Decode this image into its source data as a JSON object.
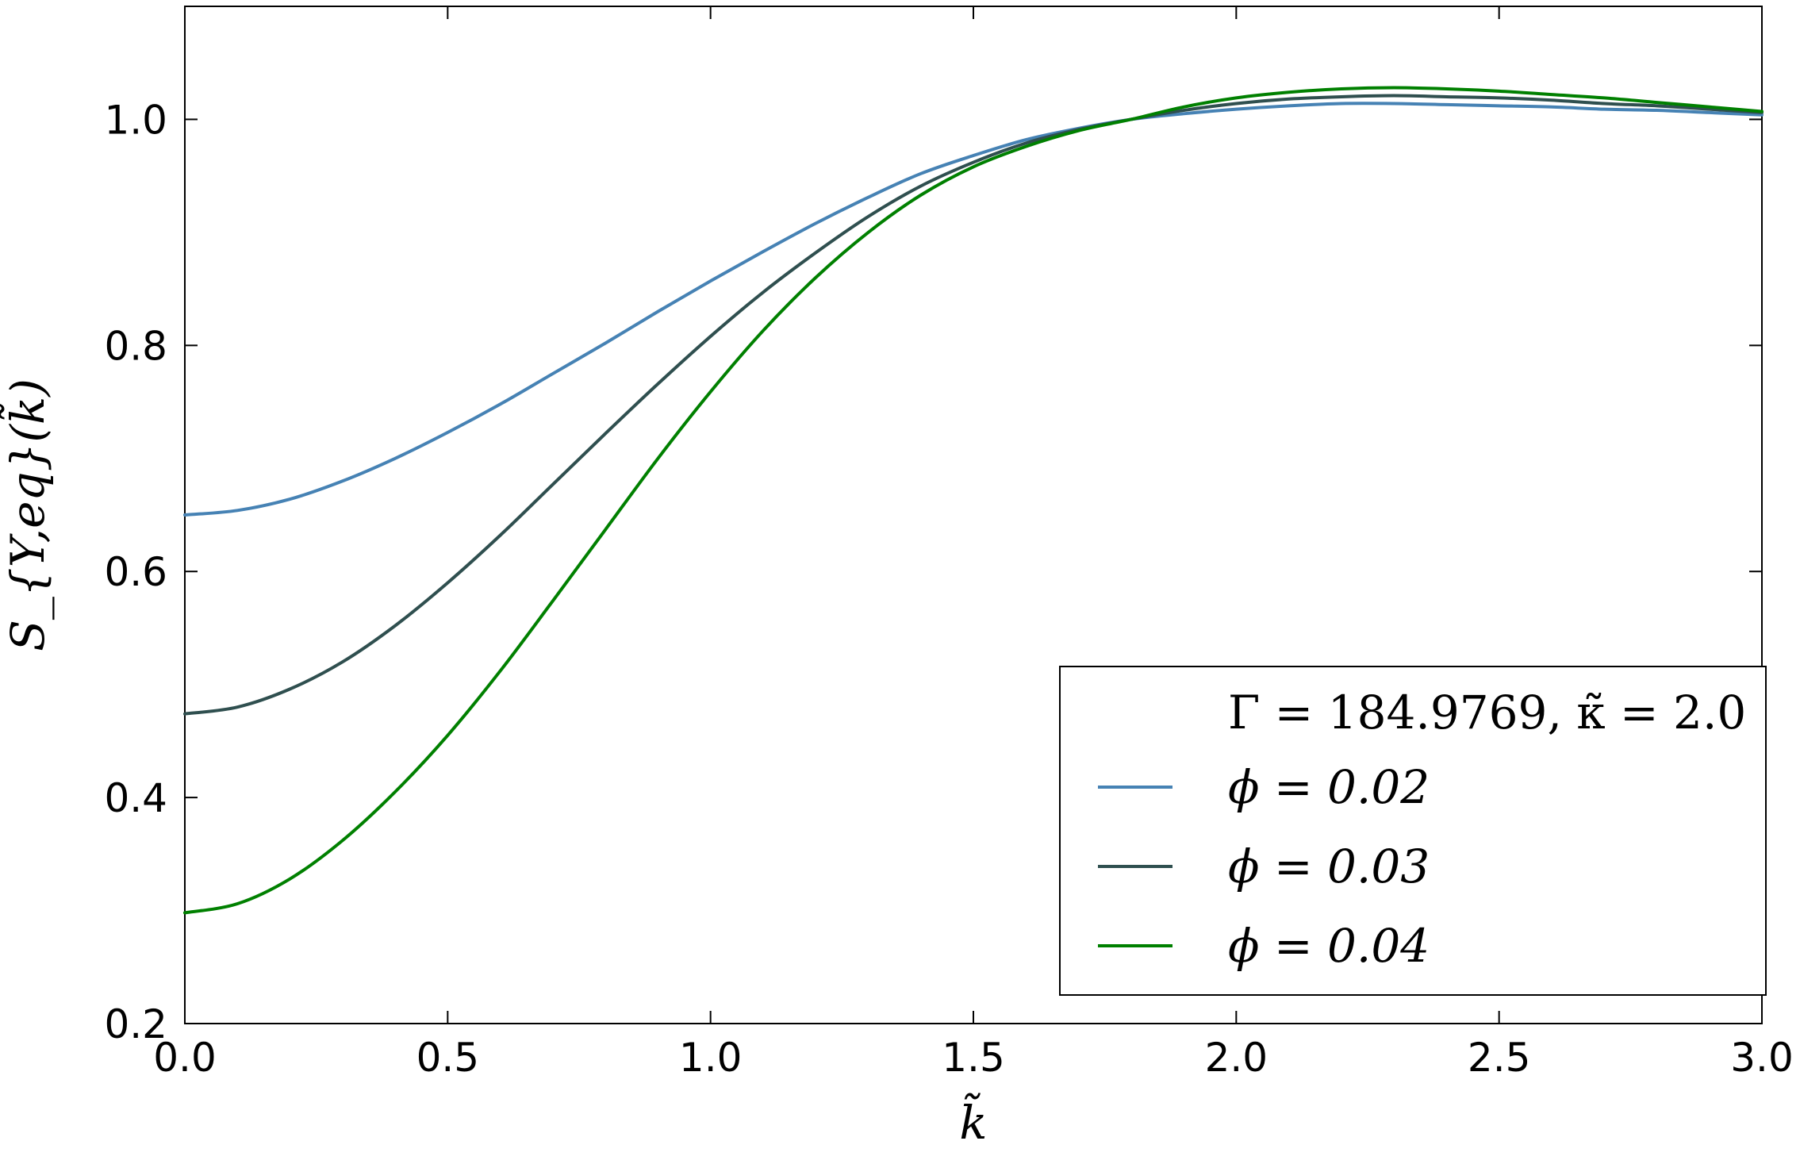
{
  "chart_data": {
    "type": "line",
    "xlabel": "k̃",
    "ylabel": "S_{Y,eq}(k̃)",
    "xlim": [
      0.0,
      3.0
    ],
    "ylim": [
      0.2,
      1.1
    ],
    "xticks": [
      "0.0",
      "0.5",
      "1.0",
      "1.5",
      "2.0",
      "2.5",
      "3.0"
    ],
    "yticks": [
      "0.2",
      "0.4",
      "0.6",
      "0.8",
      "1.0"
    ],
    "grid": false,
    "legend_position": "bottom-right",
    "legend_title": "Γ = 184.9769,  κ̃ = 2.0",
    "x": [
      0.0,
      0.1,
      0.2,
      0.3,
      0.4,
      0.5,
      0.6,
      0.7,
      0.8,
      0.9,
      1.0,
      1.1,
      1.2,
      1.3,
      1.4,
      1.5,
      1.6,
      1.7,
      1.8,
      1.9,
      2.0,
      2.1,
      2.2,
      2.3,
      2.4,
      2.5,
      2.6,
      2.7,
      2.8,
      2.9,
      3.0
    ],
    "series": [
      {
        "name": "ϕ = 0.02",
        "color": "#4682b4",
        "values": [
          0.65,
          0.654,
          0.664,
          0.68,
          0.7,
          0.723,
          0.748,
          0.775,
          0.802,
          0.83,
          0.857,
          0.883,
          0.908,
          0.931,
          0.952,
          0.968,
          0.982,
          0.992,
          1.0,
          1.005,
          1.009,
          1.012,
          1.014,
          1.014,
          1.013,
          1.012,
          1.011,
          1.009,
          1.008,
          1.006,
          1.004
        ]
      },
      {
        "name": "ϕ = 0.03",
        "color": "#2f4f4f",
        "values": [
          0.474,
          0.48,
          0.496,
          0.52,
          0.552,
          0.59,
          0.632,
          0.677,
          0.722,
          0.766,
          0.808,
          0.847,
          0.882,
          0.914,
          0.941,
          0.962,
          0.979,
          0.991,
          1.0,
          1.008,
          1.014,
          1.018,
          1.02,
          1.021,
          1.02,
          1.019,
          1.017,
          1.014,
          1.012,
          1.009,
          1.006
        ]
      },
      {
        "name": "ϕ = 0.04",
        "color": "#008000",
        "values": [
          0.298,
          0.306,
          0.328,
          0.362,
          0.405,
          0.455,
          0.512,
          0.574,
          0.637,
          0.7,
          0.759,
          0.813,
          0.86,
          0.9,
          0.933,
          0.958,
          0.976,
          0.99,
          1.0,
          1.011,
          1.019,
          1.024,
          1.027,
          1.028,
          1.027,
          1.025,
          1.022,
          1.019,
          1.015,
          1.011,
          1.007
        ]
      }
    ]
  }
}
